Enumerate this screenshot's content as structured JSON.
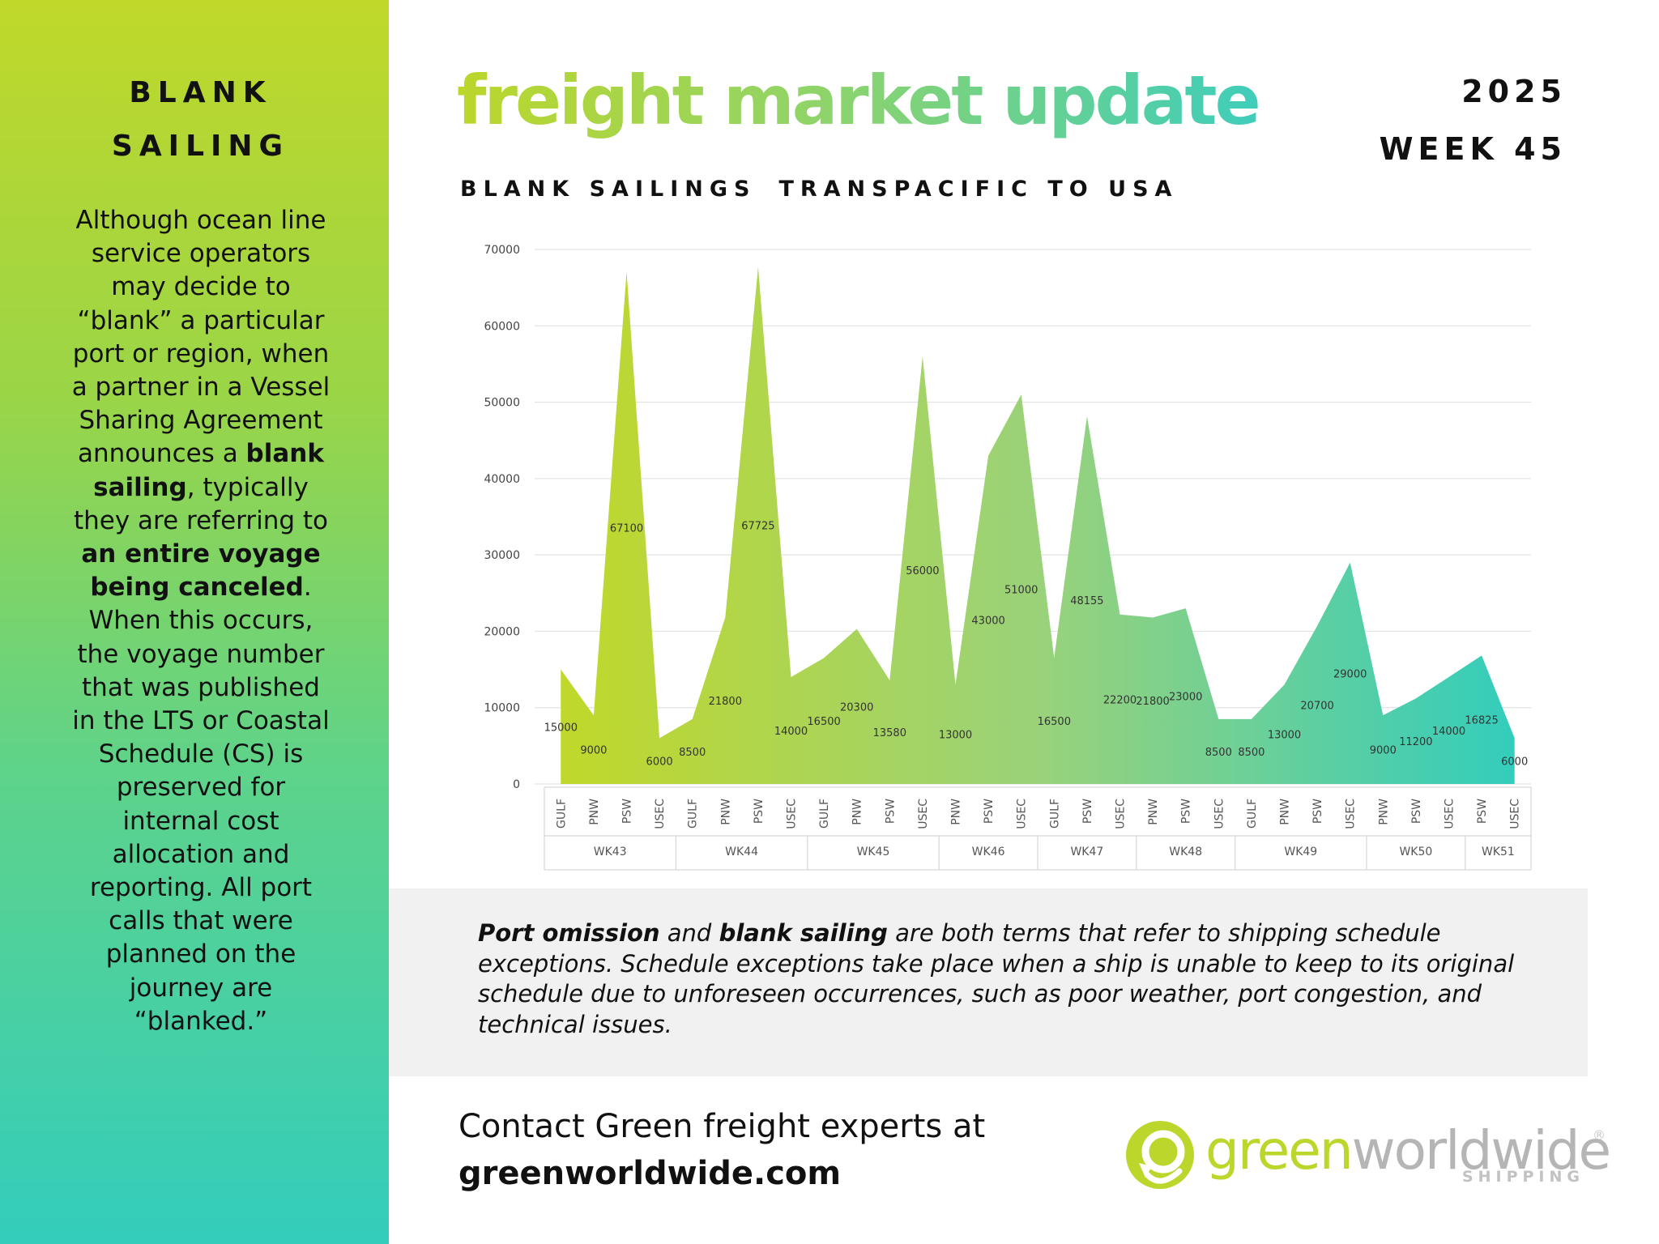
{
  "sidebar": {
    "title_line1": "BLANK",
    "title_line2": "SAILING",
    "body": {
      "p1": "Although ocean line service operators may decide to “blank” a particular port or region, when a partner in a Vessel Sharing Agreement announces a ",
      "b1": "blank sailing",
      "p2": ", typically they are referring to ",
      "b2": "an entire voyage being canceled",
      "p3": ". When this occurs, the voyage number that was published in the LTS or Coastal Schedule (CS) is preserved for internal cost allocation and reporting. All port calls that were planned on the journey are “blanked.”"
    }
  },
  "header": {
    "title": "freight market update",
    "year": "2025",
    "week": "WEEK 45",
    "subtitle_a": "BLANK SAILINGS",
    "subtitle_b": "TRANSPACIFIC TO USA"
  },
  "chart_data": {
    "type": "area",
    "title": "",
    "ylim": [
      0,
      70000
    ],
    "yticks": [
      0,
      10000,
      20000,
      30000,
      40000,
      50000,
      60000,
      70000
    ],
    "grid": true,
    "colors": [
      "#c0d82a",
      "#33cdbc"
    ],
    "groups": [
      {
        "name": "WK43",
        "ports": [
          "GULF",
          "PNW",
          "PSW",
          "USEC"
        ],
        "values": [
          15000,
          9000,
          67100,
          6000
        ]
      },
      {
        "name": "WK44",
        "ports": [
          "GULF",
          "PNW",
          "PSW",
          "USEC"
        ],
        "values": [
          8500,
          21800,
          67725,
          14000
        ]
      },
      {
        "name": "WK45",
        "ports": [
          "GULF",
          "PNW",
          "PSW",
          "USEC"
        ],
        "values": [
          16500,
          20300,
          13580,
          56000
        ]
      },
      {
        "name": "WK46",
        "ports": [
          "PNW",
          "PSW",
          "USEC"
        ],
        "values": [
          13000,
          43000,
          51000
        ]
      },
      {
        "name": "WK47",
        "ports": [
          "GULF",
          "PSW",
          "USEC"
        ],
        "values": [
          16500,
          48155,
          22200
        ]
      },
      {
        "name": "WK48",
        "ports": [
          "PNW",
          "PSW",
          "USEC"
        ],
        "values": [
          21800,
          23000,
          8500
        ]
      },
      {
        "name": "WK49",
        "ports": [
          "GULF",
          "PNW",
          "PSW",
          "USEC"
        ],
        "values": [
          8500,
          13000,
          20700,
          29000
        ]
      },
      {
        "name": "WK50",
        "ports": [
          "PNW",
          "PSW",
          "USEC"
        ],
        "values": [
          9000,
          11200,
          14000
        ]
      },
      {
        "name": "WK51",
        "ports": [
          "PSW",
          "USEC"
        ],
        "values": [
          16825,
          6000
        ]
      }
    ]
  },
  "note": {
    "b1": "Port omission",
    "t1": " and ",
    "b2": "blank sailing",
    "t2": " are both terms that refer to shipping schedule exceptions. Schedule exceptions take place when a ship is unable to keep to its original schedule due to unforeseen occurrences, such as poor weather, port congestion, and technical issues."
  },
  "contact": {
    "line1": "Contact Green freight experts at",
    "url": "greenworldwide.com"
  },
  "logo": {
    "word_a": "green",
    "word_b": "worldwide",
    "reg": "®",
    "tagline": "SHIPPING"
  }
}
